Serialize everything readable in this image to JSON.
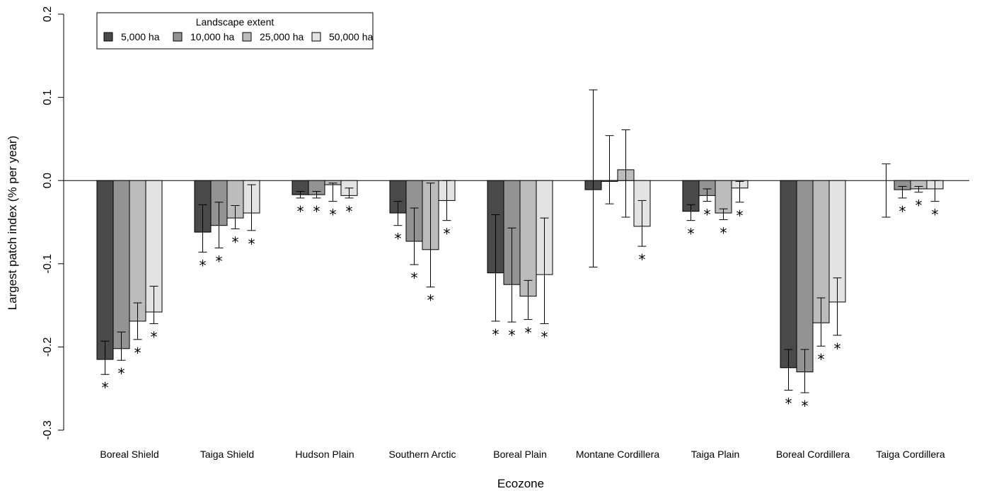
{
  "chart_data": {
    "type": "bar",
    "xlabel": "Ecozone",
    "ylabel": "Largest patch index (% per year)",
    "ylim": [
      -0.3,
      0.2
    ],
    "yticks": [
      -0.3,
      -0.2,
      -0.1,
      0.0,
      0.1,
      0.2
    ],
    "ytick_labels": [
      "-0.3",
      "-0.2",
      "-0.1",
      "0.0",
      "0.1",
      "0.2"
    ],
    "legend": {
      "title": "Landscape extent",
      "position": "top-left"
    },
    "significance_marker": "*",
    "categories": [
      "Boreal Shield",
      "Taiga Shield",
      "Hudson Plain",
      "Southern Arctic",
      "Boreal Plain",
      "Montane Cordillera",
      "Taiga Plain",
      "Boreal Cordillera",
      "Taiga Cordillera"
    ],
    "series": [
      {
        "name": "5,000 ha",
        "color": "#4a4a4a",
        "values": [
          -0.215,
          -0.062,
          -0.017,
          -0.039,
          -0.111,
          -0.011,
          -0.037,
          -0.225,
          0.0
        ],
        "ci_low": [
          -0.233,
          -0.086,
          -0.021,
          -0.054,
          -0.169,
          -0.104,
          -0.048,
          -0.252,
          -0.044
        ],
        "ci_high": [
          -0.193,
          -0.029,
          -0.013,
          -0.025,
          -0.041,
          0.109,
          -0.029,
          -0.203,
          0.02
        ],
        "significant": [
          true,
          true,
          true,
          true,
          true,
          false,
          true,
          true,
          false
        ]
      },
      {
        "name": "10,000 ha",
        "color": "#939393",
        "values": [
          -0.202,
          -0.054,
          -0.017,
          -0.073,
          -0.125,
          -0.001,
          -0.018,
          -0.23,
          -0.011
        ],
        "ci_low": [
          -0.216,
          -0.081,
          -0.021,
          -0.101,
          -0.17,
          -0.028,
          -0.025,
          -0.255,
          -0.021
        ],
        "ci_high": [
          -0.182,
          -0.026,
          -0.013,
          -0.033,
          -0.057,
          0.054,
          -0.01,
          -0.203,
          -0.007
        ],
        "significant": [
          true,
          true,
          true,
          true,
          true,
          false,
          true,
          true,
          true
        ]
      },
      {
        "name": "25,000 ha",
        "color": "#bcbcbc",
        "values": [
          -0.169,
          -0.045,
          -0.005,
          -0.083,
          -0.139,
          0.013,
          -0.039,
          -0.171,
          -0.01
        ],
        "ci_low": [
          -0.191,
          -0.058,
          -0.025,
          -0.128,
          -0.167,
          -0.044,
          -0.047,
          -0.199,
          -0.014
        ],
        "ci_high": [
          -0.147,
          -0.03,
          -0.003,
          -0.003,
          -0.12,
          0.061,
          -0.034,
          -0.141,
          -0.007
        ],
        "significant": [
          true,
          true,
          true,
          true,
          true,
          false,
          true,
          true,
          true
        ]
      },
      {
        "name": "50,000 ha",
        "color": "#e3e3e3",
        "values": [
          -0.158,
          -0.039,
          -0.018,
          -0.024,
          -0.113,
          -0.055,
          -0.009,
          -0.146,
          -0.01
        ],
        "ci_low": [
          -0.172,
          -0.06,
          -0.021,
          -0.048,
          -0.172,
          -0.079,
          -0.026,
          -0.186,
          -0.025
        ],
        "ci_high": [
          -0.127,
          -0.005,
          -0.009,
          0.0,
          -0.045,
          -0.024,
          -0.001,
          -0.117,
          0.0
        ],
        "significant": [
          true,
          true,
          true,
          true,
          true,
          true,
          true,
          true,
          true
        ]
      }
    ]
  }
}
